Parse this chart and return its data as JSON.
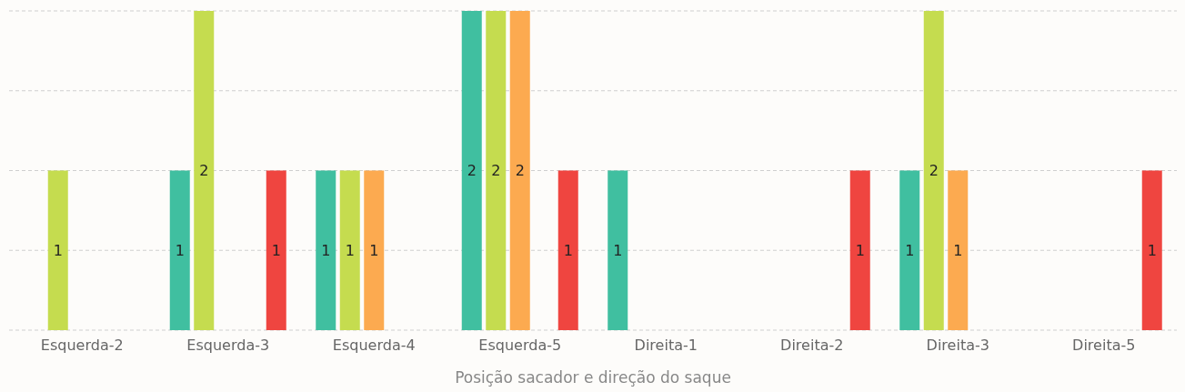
{
  "chart_data": {
    "type": "bar",
    "xlabel": "Posição sacador e direção do saque",
    "categories": [
      "Esquerda-2",
      "Esquerda-3",
      "Esquerda-4",
      "Esquerda-5",
      "Direita-1",
      "Direita-2",
      "Direita-3",
      "Direita-5"
    ],
    "series": [
      {
        "color": "#40bfa0",
        "values": [
          null,
          1,
          1,
          2,
          1,
          null,
          1,
          null
        ]
      },
      {
        "color": "#c5dc4f",
        "values": [
          1,
          2,
          1,
          2,
          null,
          null,
          2,
          null
        ]
      },
      {
        "color": "#fcaa50",
        "values": [
          null,
          null,
          1,
          2,
          null,
          null,
          1,
          null
        ]
      },
      {
        "values": [
          null,
          null,
          null,
          null,
          null,
          null,
          null,
          null
        ]
      },
      {
        "color": "#ef4540",
        "values": [
          null,
          1,
          null,
          1,
          null,
          1,
          null,
          1
        ]
      }
    ],
    "ylim": [
      0,
      2
    ],
    "yticks": [
      {
        "value": 0,
        "label": null
      },
      {
        "value": 0.5,
        "label": null
      },
      {
        "value": 1,
        "label": null
      },
      {
        "value": 1.5,
        "label": null
      },
      {
        "value": 2,
        "label": null
      }
    ],
    "grid": "y",
    "tick_labels": "x",
    "data_labels": true
  }
}
